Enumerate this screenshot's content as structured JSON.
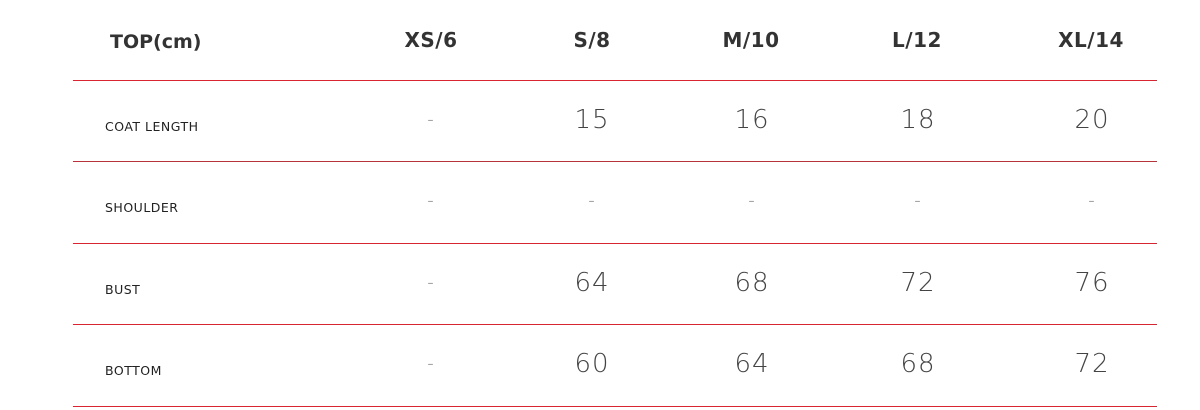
{
  "table": {
    "title": "TOP(cm)",
    "columns": [
      "XS/6",
      "S/8",
      "M/10",
      "L/12",
      "XL/14"
    ],
    "rows": [
      {
        "label": "COAT LENGTH",
        "values": [
          "-",
          "15",
          "16",
          "18",
          "20"
        ]
      },
      {
        "label": "SHOULDER",
        "values": [
          "-",
          "-",
          "-",
          "-",
          "-"
        ]
      },
      {
        "label": "BUST",
        "values": [
          "-",
          "64",
          "68",
          "72",
          "76"
        ]
      },
      {
        "label": "BOTTOM",
        "values": [
          "-",
          "60",
          "64",
          "68",
          "72"
        ]
      }
    ],
    "divider_color": "#d9252f"
  }
}
